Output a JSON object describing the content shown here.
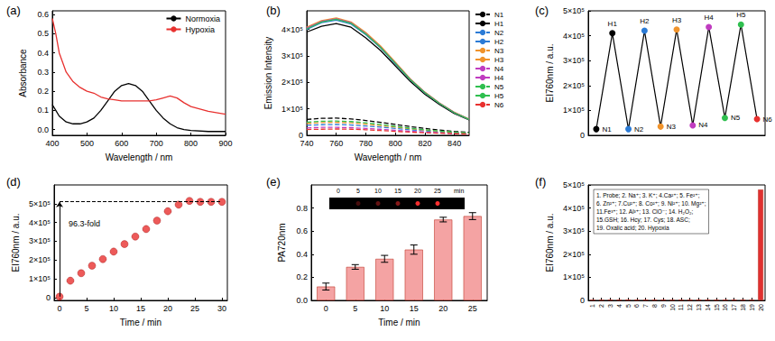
{
  "chart_data": [
    {
      "type": "line",
      "title": "(a)",
      "x_label": "Wavelength / nm",
      "y_label": "Absorbance",
      "x": [
        400,
        410,
        420,
        440,
        460,
        480,
        500,
        520,
        540,
        560,
        580,
        600,
        620,
        640,
        660,
        680,
        700,
        720,
        740,
        760,
        780,
        800,
        850,
        900
      ],
      "series": [
        {
          "name": "Normoxia",
          "color": "#000000",
          "values": [
            0.13,
            0.1,
            0.07,
            0.04,
            0.03,
            0.03,
            0.04,
            0.06,
            0.1,
            0.15,
            0.2,
            0.23,
            0.24,
            0.23,
            0.2,
            0.15,
            0.1,
            0.06,
            0.03,
            0.01,
            0.0,
            -0.005,
            -0.01,
            -0.01
          ]
        },
        {
          "name": "Hypoxia",
          "color": "#e8312f",
          "values": [
            0.58,
            0.5,
            0.4,
            0.3,
            0.25,
            0.22,
            0.2,
            0.19,
            0.17,
            0.16,
            0.155,
            0.15,
            0.15,
            0.15,
            0.15,
            0.15,
            0.155,
            0.165,
            0.175,
            0.165,
            0.14,
            0.12,
            0.095,
            0.08
          ]
        }
      ],
      "xlim": [
        400,
        900
      ],
      "xticks": [
        400,
        500,
        600,
        700,
        800,
        900
      ],
      "ylim": [
        -0.03,
        0.62
      ],
      "yticks": [
        {
          "value": 0,
          "label": "0.0"
        },
        0.1,
        0.2,
        0.3,
        0.4,
        0.5,
        0.6
      ],
      "legend": "upper right"
    },
    {
      "type": "line",
      "title": "(b)",
      "x_label": "Wavelength / nm",
      "y_label": "Emission Intensity",
      "x": [
        740,
        750,
        760,
        770,
        780,
        790,
        800,
        810,
        820,
        830,
        840,
        850
      ],
      "series": [
        {
          "name": "N1",
          "color": "#000000",
          "line_style": "dashed",
          "values": [
            60000,
            64000,
            65000,
            62000,
            56000,
            49000,
            41000,
            33000,
            26000,
            20000,
            15000,
            11000
          ]
        },
        {
          "name": "H1",
          "color": "#000000",
          "line_style": "solid",
          "values": [
            390000,
            412000,
            422000,
            408000,
            368000,
            320000,
            262000,
            204000,
            155000,
            116000,
            82000,
            58000
          ]
        },
        {
          "name": "N2",
          "color": "#2b7bd6",
          "line_style": "dashed",
          "values": [
            38000,
            40000,
            41000,
            39000,
            35000,
            31000,
            26000,
            21000,
            17000,
            13000,
            10000,
            8000
          ]
        },
        {
          "name": "H2",
          "color": "#2b7bd6",
          "line_style": "solid",
          "values": [
            400000,
            425000,
            435000,
            420000,
            380000,
            330000,
            270000,
            210000,
            160000,
            120000,
            85000,
            60000
          ]
        },
        {
          "name": "N3",
          "color": "#f0932b",
          "line_style": "dashed",
          "values": [
            45000,
            48000,
            49000,
            47000,
            42000,
            37000,
            31000,
            25000,
            20000,
            15000,
            11000,
            8000
          ]
        },
        {
          "name": "H3",
          "color": "#f0932b",
          "line_style": "solid",
          "values": [
            408000,
            433000,
            443000,
            428000,
            388000,
            337000,
            276000,
            214000,
            163000,
            122000,
            87000,
            61000
          ]
        },
        {
          "name": "N4",
          "color": "#c03cc0",
          "line_style": "dashed",
          "values": [
            28000,
            30000,
            30000,
            29000,
            26000,
            23000,
            19000,
            15000,
            12000,
            9000,
            7000,
            5000
          ]
        },
        {
          "name": "H4",
          "color": "#c03cc0",
          "line_style": "solid",
          "values": [
            405000,
            430000,
            440000,
            425000,
            384000,
            333000,
            273000,
            212000,
            162000,
            121000,
            86000,
            60000
          ]
        },
        {
          "name": "N5",
          "color": "#2fbf4f",
          "line_style": "dashed",
          "values": [
            50000,
            53000,
            54000,
            52000,
            47000,
            41000,
            34000,
            27000,
            21000,
            16000,
            12000,
            9000
          ]
        },
        {
          "name": "H5",
          "color": "#2fbf4f",
          "line_style": "solid",
          "values": [
            402000,
            428000,
            438000,
            423000,
            382000,
            332000,
            272000,
            211000,
            161000,
            120000,
            85000,
            60000
          ]
        },
        {
          "name": "N6",
          "color": "#e8312f",
          "line_style": "dashed",
          "values": [
            22000,
            23000,
            24000,
            23000,
            21000,
            18000,
            15000,
            12000,
            10000,
            8000,
            6000,
            4000
          ]
        }
      ],
      "xlim": [
        740,
        850
      ],
      "xticks": [
        740,
        760,
        780,
        800,
        820,
        840
      ],
      "ylim": [
        0,
        470000
      ],
      "yticks": [
        0,
        {
          "value": 100000,
          "label": "1×10⁵"
        },
        {
          "value": 200000,
          "label": "2×10⁵"
        },
        {
          "value": 300000,
          "label": "3×10⁵"
        },
        {
          "value": 400000,
          "label": "4×10⁵"
        }
      ],
      "legend": "right"
    },
    {
      "type": "line",
      "title": "(c)",
      "y_label": "EI760nm / a.u.",
      "categories": [
        "N1",
        "H1",
        "N2",
        "H2",
        "N3",
        "H3",
        "N4",
        "H4",
        "N5",
        "H5",
        "N6"
      ],
      "values": [
        25000,
        410000,
        25000,
        420000,
        35000,
        425000,
        40000,
        435000,
        70000,
        445000,
        65000
      ],
      "color": "#000000",
      "colors": [
        "#000000",
        "#000000",
        "#2b7bd6",
        "#2b7bd6",
        "#f0932b",
        "#f0932b",
        "#c03cc0",
        "#c03cc0",
        "#2fbf4f",
        "#2fbf4f",
        "#e8312f"
      ],
      "marker": "circle",
      "ylim": [
        0,
        500000
      ],
      "yticks": [
        0,
        {
          "value": 100000,
          "label": "1×10⁵"
        },
        {
          "value": 200000,
          "label": "2×10⁵"
        },
        {
          "value": 300000,
          "label": "3×10⁵"
        },
        {
          "value": 400000,
          "label": "4×10⁵"
        },
        {
          "value": 500000,
          "label": "5×10⁵"
        }
      ],
      "tick_labels": "y"
    },
    {
      "type": "scatter",
      "title": "(d)",
      "x_label": "Time / min",
      "y_label": "EI760nm / a.u.",
      "x": [
        0,
        2,
        4,
        6,
        8,
        10,
        12,
        14,
        16,
        18,
        20,
        22,
        24,
        26,
        28,
        30
      ],
      "values": [
        5000,
        90000,
        130000,
        170000,
        205000,
        245000,
        285000,
        325000,
        365000,
        410000,
        460000,
        495000,
        515000,
        510000,
        510000,
        510000
      ],
      "color": "#e8312f",
      "marker": "circle",
      "xlim": [
        -1,
        31
      ],
      "xticks": [
        0,
        5,
        10,
        15,
        20,
        25,
        30
      ],
      "ylim": [
        -15000,
        600000
      ],
      "yticks": [
        0,
        {
          "value": 100000,
          "label": "1×10⁵"
        },
        {
          "value": 200000,
          "label": "2×10⁵"
        },
        {
          "value": 300000,
          "label": "3×10⁵"
        },
        {
          "value": 400000,
          "label": "4×10⁵"
        },
        {
          "value": 500000,
          "label": "5×10⁵"
        }
      ],
      "annotation": "96.3-fold",
      "plateau": 510000
    },
    {
      "type": "bar",
      "title": "(e)",
      "x_label": "Time / min",
      "y_label": "PA720nm",
      "categories": [
        "0",
        "5",
        "10",
        "15",
        "20",
        "25"
      ],
      "values": [
        0.12,
        0.29,
        0.36,
        0.44,
        0.7,
        0.73
      ],
      "errors": [
        0.03,
        0.02,
        0.03,
        0.04,
        0.02,
        0.03
      ],
      "color": "#f4a3a3",
      "ylim": [
        0,
        1.0
      ],
      "yticks": [
        {
          "value": 0,
          "label": "0.0"
        },
        0.2,
        0.4,
        0.6,
        0.8
      ],
      "inset_labels": [
        "0",
        "5",
        "10",
        "15",
        "20",
        "25"
      ],
      "inset_unit": "min"
    },
    {
      "type": "bar",
      "title": "(f)",
      "y_label": "EI760nm / a.u.",
      "categories": [
        "1",
        "2",
        "3",
        "4",
        "5",
        "6",
        "7",
        "8",
        "9",
        "10",
        "11",
        "12",
        "13",
        "14",
        "15",
        "16",
        "17",
        "18",
        "19",
        "20"
      ],
      "values": [
        3000,
        2500,
        3200,
        2800,
        3500,
        2700,
        3100,
        2900,
        3300,
        2600,
        3000,
        2800,
        3400,
        3100,
        2700,
        3000,
        2900,
        3200,
        3000,
        480000
      ],
      "color": "#e03030",
      "ylim": [
        0,
        500000
      ],
      "yticks": [
        0,
        {
          "value": 100000,
          "label": "1×10⁵"
        },
        {
          "value": 200000,
          "label": "2×10⁵"
        },
        {
          "value": 300000,
          "label": "3×10⁵"
        },
        {
          "value": 400000,
          "label": "4×10⁵"
        },
        {
          "value": 500000,
          "label": "5×10⁵"
        }
      ],
      "annotations": [
        "1. Probe; 2. Na⁺; 3. K⁺; 4.Ca²⁺; 5. Fe²⁺;",
        "6. Zn²⁺; 7.Cu²⁺; 8. Co²⁺; 9. Ni²⁺; 10. Mg²⁺;",
        "11.Fe³⁺; 12. Al³⁺; 13. ClO⁻; 14. H₂O₂;",
        "15.GSH; 16. Hcy; 17. Cys; 18. ASC;",
        "19. Oxalic acid; 20. Hypoxia"
      ]
    }
  ]
}
